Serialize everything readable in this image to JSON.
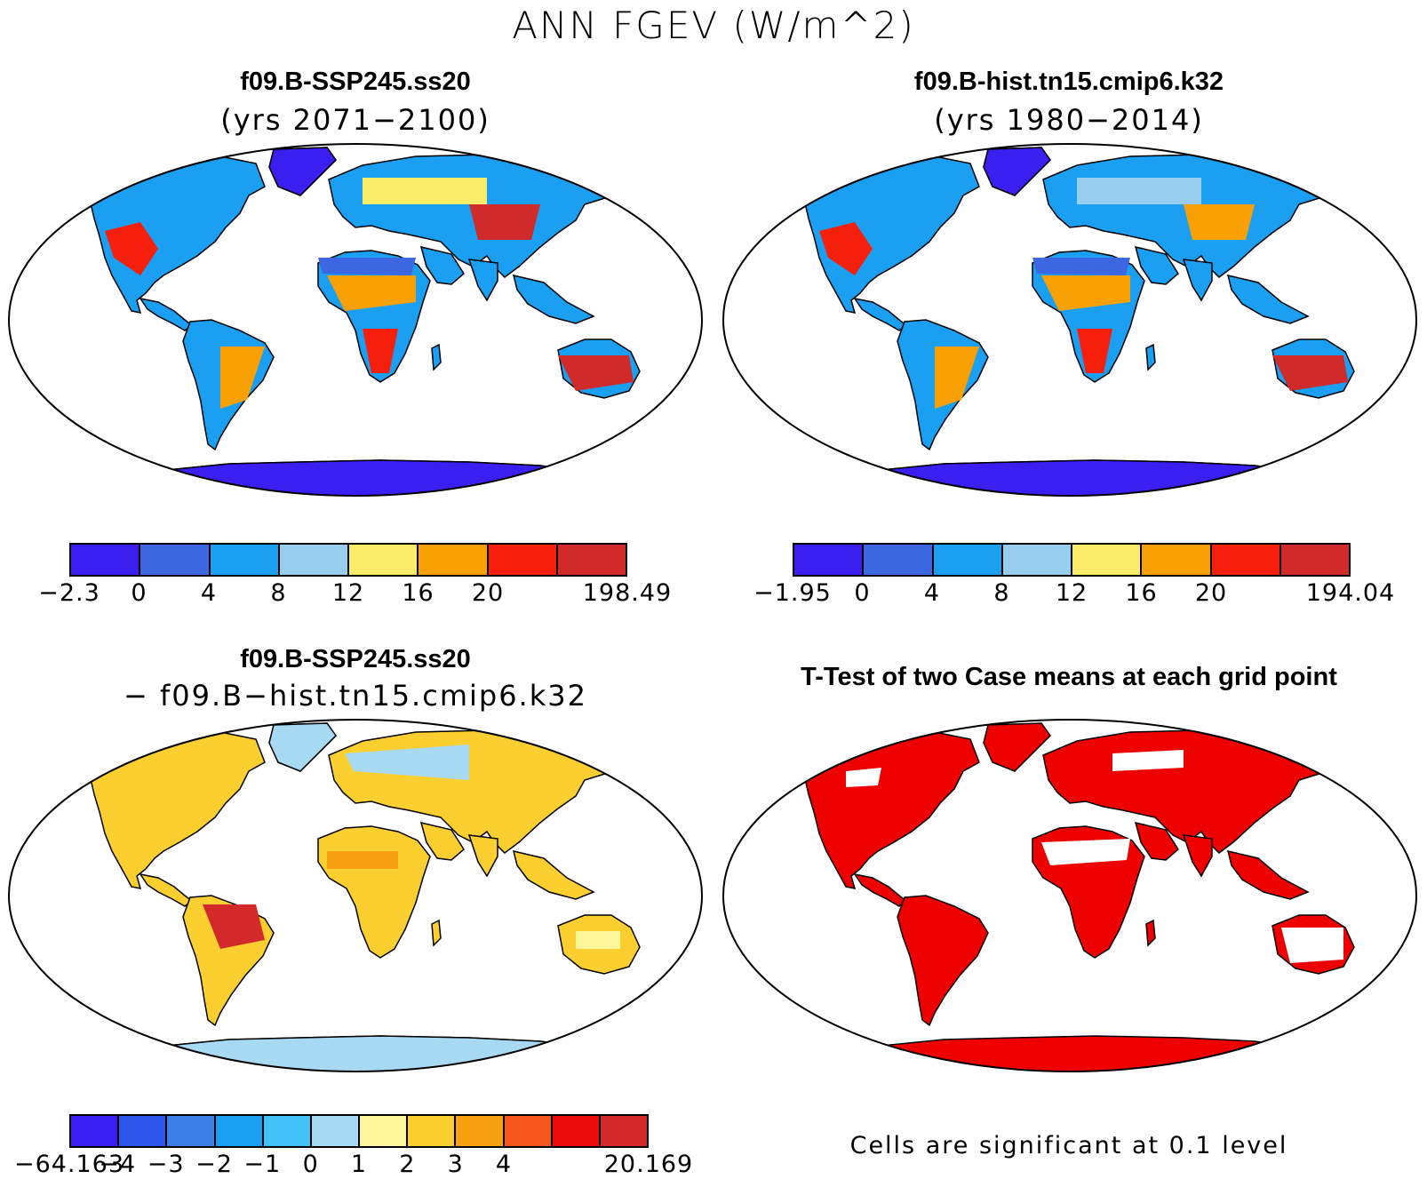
{
  "title": "ANN FGEV (W/m^2)",
  "panels": [
    {
      "id": "case1",
      "name": "f09.B-SSP245.ss20",
      "subtitle": "(yrs 2071−2100)",
      "colorbar": {
        "colors": [
          "#3b1ef0",
          "#3d67e2",
          "#1a9ff2",
          "#97cdef",
          "#fbec6a",
          "#f9a004",
          "#f61f0c",
          "#d12a2a"
        ],
        "labels": [
          "−2.3",
          "0",
          "4",
          "8",
          "12",
          "16",
          "20",
          "198.49"
        ]
      }
    },
    {
      "id": "case2",
      "name": "f09.B-hist.tn15.cmip6.k32",
      "subtitle": "(yrs 1980−2014)",
      "colorbar": {
        "colors": [
          "#3b1ef0",
          "#3d67e2",
          "#1a9ff2",
          "#97cdef",
          "#fbec6a",
          "#f9a004",
          "#f61f0c",
          "#d12a2a"
        ],
        "labels": [
          "−1.95",
          "0",
          "4",
          "8",
          "12",
          "16",
          "20",
          "194.04"
        ]
      }
    },
    {
      "id": "diff",
      "name": "f09.B-SSP245.ss20",
      "subtitle": "− f09.B−hist.tn15.cmip6.k32",
      "colorbar": {
        "colors": [
          "#3b1ef0",
          "#2c57ea",
          "#3a7ee6",
          "#1a9ff2",
          "#41c1f5",
          "#a8d9f2",
          "#fdf59a",
          "#fbcf30",
          "#f99f12",
          "#f6571c",
          "#ec0b0b",
          "#d22a2a"
        ],
        "labels": [
          "−64.163",
          "−4",
          "−3",
          "−2",
          "−1",
          "0",
          "1",
          "2",
          "3",
          "4",
          "20.169"
        ]
      }
    },
    {
      "id": "ttest",
      "name": "T-Test of two Case means at each grid point",
      "footnote": "Cells are significant at 0.1 level",
      "fill_color": "#ee0000"
    }
  ]
}
